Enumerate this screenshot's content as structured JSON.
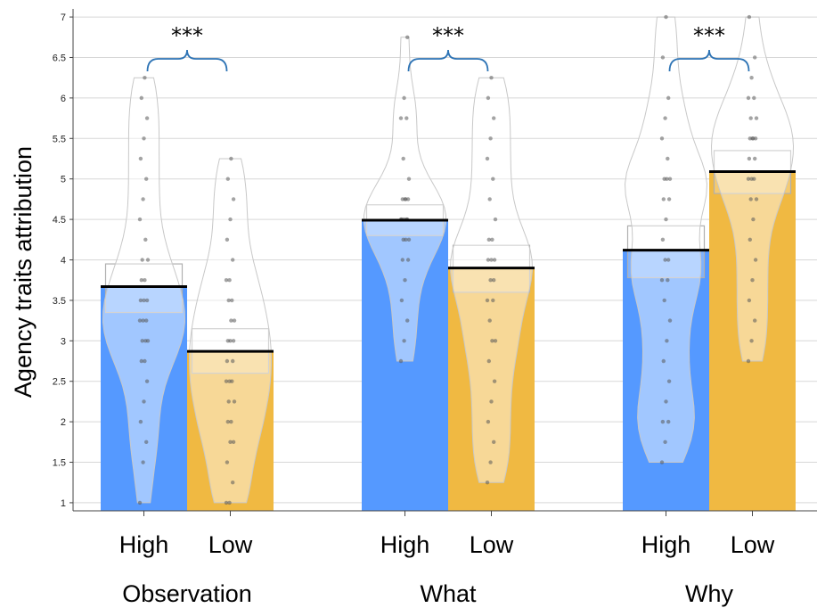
{
  "chart_data": {
    "type": "bar",
    "ylabel": "Agency traits attribution",
    "xlabel": "",
    "title": "",
    "ylim": [
      0.9,
      7.1
    ],
    "yticks": [
      "1",
      "1.5",
      "2",
      "2.5",
      "3",
      "3.5",
      "4",
      "4.5",
      "5",
      "5.5",
      "6",
      "6.5",
      "7"
    ],
    "grid": "horizontal",
    "groups": [
      {
        "name": "Observation",
        "significance": "***",
        "bars": [
          {
            "label": "High",
            "mean": 3.67,
            "ci": [
              3.35,
              3.95
            ],
            "violin": [
              1.0,
              6.25
            ],
            "points": [
              1.0,
              1.5,
              1.75,
              2.0,
              2.25,
              2.5,
              2.75,
              2.75,
              3.0,
              3.0,
              3.0,
              3.25,
              3.25,
              3.25,
              3.5,
              3.5,
              3.5,
              3.75,
              3.75,
              4.0,
              4.0,
              4.25,
              4.5,
              4.75,
              5.0,
              5.25,
              5.5,
              5.75,
              6.0,
              6.25
            ]
          },
          {
            "label": "Low",
            "mean": 2.87,
            "ci": [
              2.6,
              3.15
            ],
            "violin": [
              1.0,
              5.25
            ],
            "points": [
              1.0,
              1.0,
              1.25,
              1.5,
              1.75,
              1.75,
              2.0,
              2.0,
              2.25,
              2.25,
              2.5,
              2.5,
              2.5,
              2.75,
              2.75,
              3.0,
              3.0,
              3.0,
              3.25,
              3.25,
              3.5,
              3.5,
              3.75,
              3.75,
              4.0,
              4.25,
              4.5,
              4.75,
              5.0,
              5.25
            ]
          }
        ]
      },
      {
        "name": "What",
        "significance": "***",
        "bars": [
          {
            "label": "High",
            "mean": 4.49,
            "ci": [
              4.3,
              4.68
            ],
            "violin": [
              2.75,
              6.75
            ],
            "points": [
              2.75,
              3.0,
              3.25,
              3.5,
              3.75,
              4.0,
              4.0,
              4.25,
              4.25,
              4.25,
              4.5,
              4.5,
              4.5,
              4.5,
              4.5,
              4.75,
              4.75,
              4.75,
              4.75,
              5.0,
              5.25,
              5.75,
              5.75,
              6.0,
              6.75
            ]
          },
          {
            "label": "Low",
            "mean": 3.9,
            "ci": [
              3.6,
              4.18
            ],
            "violin": [
              1.25,
              6.25
            ],
            "points": [
              1.25,
              1.5,
              1.75,
              2.0,
              2.25,
              2.5,
              2.75,
              3.0,
              3.0,
              3.25,
              3.5,
              3.5,
              3.75,
              3.75,
              4.0,
              4.0,
              4.0,
              4.25,
              4.25,
              4.5,
              4.75,
              5.0,
              5.25,
              5.5,
              5.75,
              6.0,
              6.25
            ]
          }
        ]
      },
      {
        "name": "Why",
        "significance": "***",
        "bars": [
          {
            "label": "High",
            "mean": 4.12,
            "ci": [
              3.78,
              4.42
            ],
            "violin": [
              1.5,
              7.0
            ],
            "points": [
              1.5,
              1.75,
              2.0,
              2.0,
              2.25,
              2.5,
              2.75,
              3.0,
              3.25,
              3.5,
              3.75,
              3.75,
              4.0,
              4.0,
              4.25,
              4.5,
              4.75,
              4.75,
              5.0,
              5.0,
              5.0,
              5.25,
              5.5,
              5.75,
              6.0,
              6.5,
              7.0
            ]
          },
          {
            "label": "Low",
            "mean": 5.09,
            "ci": [
              4.82,
              5.35
            ],
            "violin": [
              2.75,
              7.0
            ],
            "points": [
              2.75,
              3.0,
              3.25,
              3.5,
              3.75,
              4.0,
              4.25,
              4.5,
              4.75,
              4.75,
              5.0,
              5.0,
              5.0,
              5.25,
              5.25,
              5.5,
              5.5,
              5.5,
              5.5,
              5.75,
              5.75,
              6.0,
              6.0,
              6.25,
              6.5,
              7.0
            ]
          }
        ]
      }
    ]
  },
  "colors": {
    "high": "#5599FF",
    "low": "#F0B942",
    "bracket": "#2E74B5",
    "mean_line": "#000000",
    "grid": "#d7d7d7"
  }
}
